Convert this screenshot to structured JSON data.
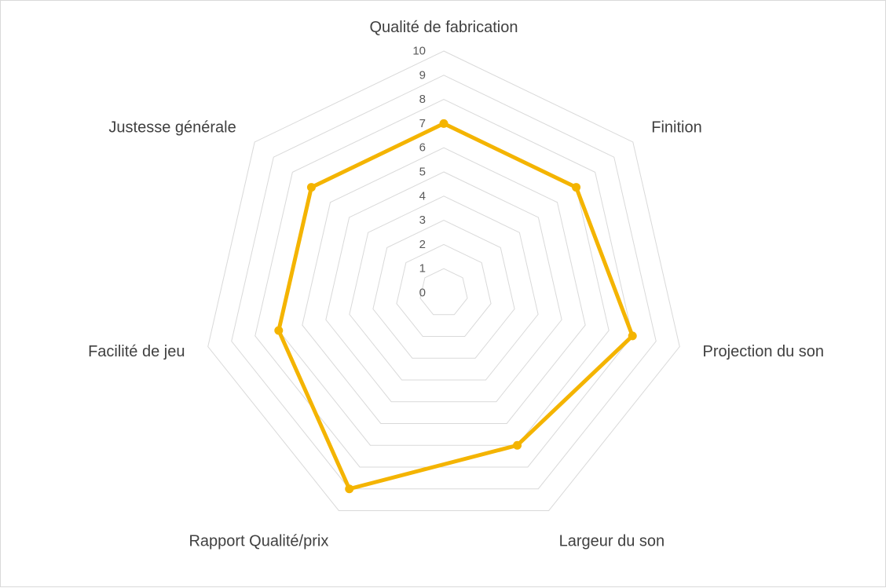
{
  "chart_data": {
    "type": "radar",
    "categories": [
      "Qualité de fabrication",
      "Finition",
      "Projection du son",
      "Largeur du son",
      "Rapport Qualité/prix",
      "Facilité de jeu",
      "Justesse générale"
    ],
    "series": [
      {
        "values": [
          7,
          7,
          8,
          7,
          9,
          7,
          7
        ],
        "color": "#f4b400"
      }
    ],
    "rlim": [
      0,
      10
    ],
    "ticks": [
      "0",
      "1",
      "2",
      "3",
      "4",
      "5",
      "6",
      "7",
      "8",
      "9",
      "10"
    ],
    "grid": true,
    "legend": "none",
    "grid_color": "#d9d9d9"
  }
}
